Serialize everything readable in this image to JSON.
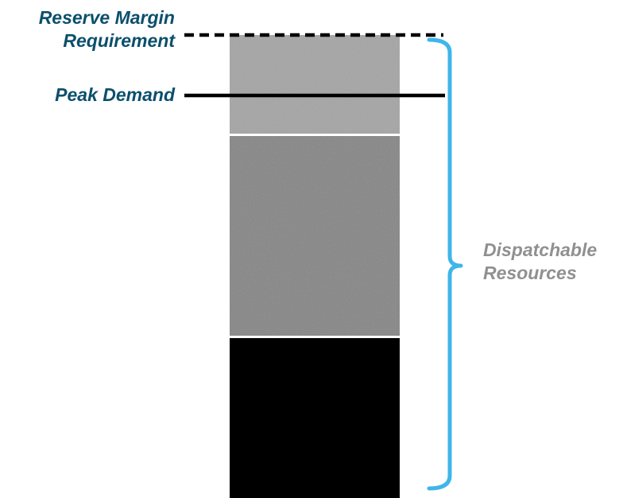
{
  "labels": {
    "reserve_line1": "Reserve Margin",
    "reserve_line2": "Requirement",
    "peak": "Peak Demand",
    "dispatch_line1": "Dispatchable",
    "dispatch_line2": "Resources"
  },
  "colors": {
    "left_label_text": "#0b4f6c",
    "right_label_text": "#909090",
    "bracket": "#3fb5ea",
    "dashed_line": "#000000",
    "peak_line": "#000000",
    "block_top": "#a5a5a5",
    "block_middle": "#868686",
    "block_bottom": "#000000"
  }
}
